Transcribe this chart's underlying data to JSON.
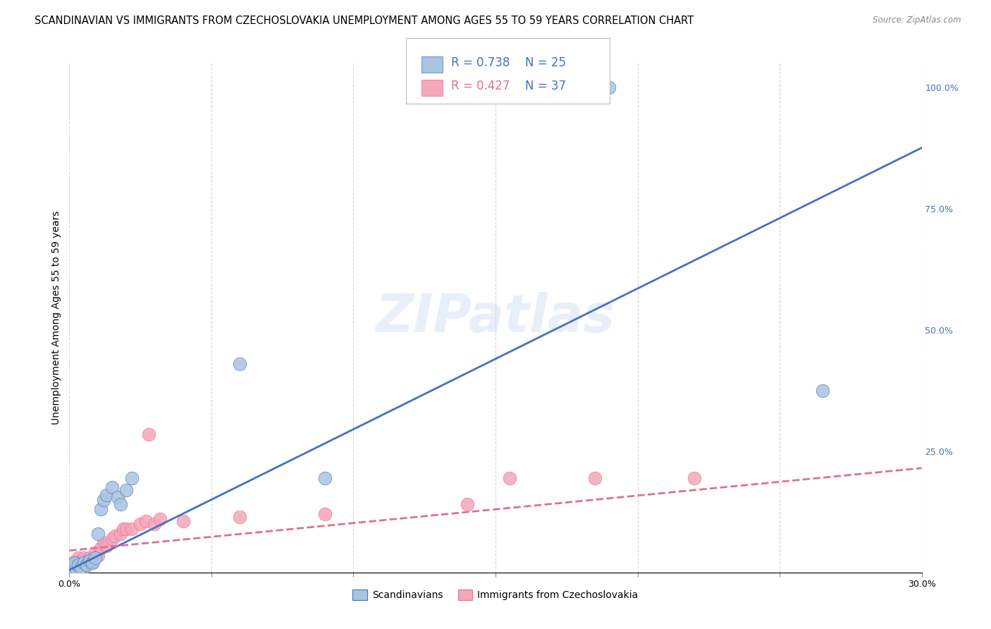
{
  "title": "SCANDINAVIAN VS IMMIGRANTS FROM CZECHOSLOVAKIA UNEMPLOYMENT AMONG AGES 55 TO 59 YEARS CORRELATION CHART",
  "source": "Source: ZipAtlas.com",
  "ylabel": "Unemployment Among Ages 55 to 59 years",
  "xlim": [
    0.0,
    0.3
  ],
  "ylim": [
    0.0,
    1.05
  ],
  "x_ticks": [
    0.0,
    0.05,
    0.1,
    0.15,
    0.2,
    0.25,
    0.3
  ],
  "x_tick_labels": [
    "0.0%",
    "",
    "",
    "",
    "",
    "",
    "30.0%"
  ],
  "y_ticks_right": [
    0.0,
    0.25,
    0.5,
    0.75,
    1.0
  ],
  "y_tick_labels_right": [
    "",
    "25.0%",
    "50.0%",
    "75.0%",
    "100.0%"
  ],
  "scandinavian_color": "#a8c4e0",
  "czechoslovakia_color": "#f4a7b9",
  "line_blue": "#4472c4",
  "line_pink": "#e07090",
  "watermark": "ZIPatlas",
  "legend_R_scand": "R = 0.738",
  "legend_N_scand": "N = 25",
  "legend_R_czech": "R = 0.427",
  "legend_N_czech": "N = 37",
  "scandinavians_x": [
    0.001,
    0.001,
    0.002,
    0.002,
    0.003,
    0.004,
    0.005,
    0.006,
    0.007,
    0.008,
    0.009,
    0.01,
    0.011,
    0.012,
    0.013,
    0.015,
    0.017,
    0.018,
    0.02,
    0.022,
    0.06,
    0.09,
    0.185,
    0.19,
    0.265
  ],
  "scandinavians_y": [
    0.005,
    0.015,
    0.01,
    0.02,
    0.015,
    0.01,
    0.02,
    0.015,
    0.025,
    0.02,
    0.03,
    0.08,
    0.13,
    0.15,
    0.16,
    0.175,
    0.155,
    0.14,
    0.17,
    0.195,
    0.43,
    0.195,
    1.0,
    1.0,
    0.375
  ],
  "czechoslovakia_x": [
    0.001,
    0.001,
    0.001,
    0.002,
    0.002,
    0.003,
    0.003,
    0.004,
    0.004,
    0.005,
    0.005,
    0.006,
    0.007,
    0.008,
    0.009,
    0.01,
    0.011,
    0.012,
    0.013,
    0.015,
    0.016,
    0.018,
    0.019,
    0.02,
    0.022,
    0.025,
    0.027,
    0.028,
    0.03,
    0.032,
    0.04,
    0.06,
    0.09,
    0.14,
    0.155,
    0.185,
    0.22
  ],
  "czechoslovakia_y": [
    0.005,
    0.01,
    0.02,
    0.01,
    0.02,
    0.01,
    0.03,
    0.015,
    0.025,
    0.01,
    0.03,
    0.02,
    0.03,
    0.02,
    0.04,
    0.035,
    0.05,
    0.06,
    0.055,
    0.07,
    0.075,
    0.08,
    0.09,
    0.09,
    0.09,
    0.1,
    0.105,
    0.285,
    0.1,
    0.11,
    0.105,
    0.115,
    0.12,
    0.14,
    0.195,
    0.195,
    0.195
  ],
  "scand_line_x": [
    0.0,
    0.3
  ],
  "scand_line_y": [
    0.005,
    0.875
  ],
  "czech_line_x": [
    0.0,
    0.3
  ],
  "czech_line_y": [
    0.045,
    0.215
  ],
  "background_color": "#ffffff",
  "grid_color": "#cccccc",
  "title_fontsize": 10.5,
  "axis_label_fontsize": 10,
  "tick_fontsize": 9,
  "legend_fontsize": 11
}
